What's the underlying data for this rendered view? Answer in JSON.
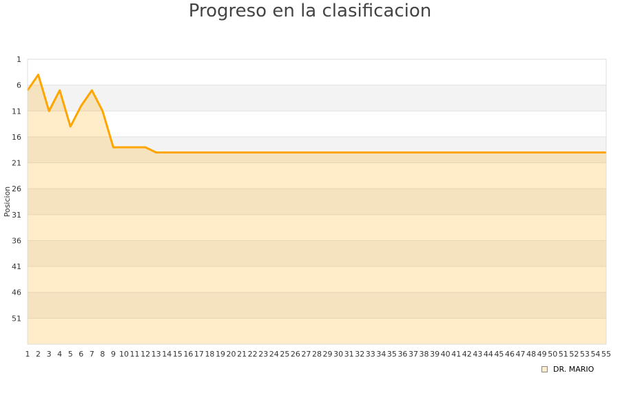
{
  "chart_data": {
    "type": "area",
    "title": "Progreso en la clasificacion",
    "xlabel": "",
    "ylabel": "Posicion",
    "x": [
      1,
      2,
      3,
      4,
      5,
      6,
      7,
      8,
      9,
      10,
      11,
      12,
      13,
      14,
      15,
      16,
      17,
      18,
      19,
      20,
      21,
      22,
      23,
      24,
      25,
      26,
      27,
      28,
      29,
      30,
      31,
      32,
      33,
      34,
      35,
      36,
      37,
      38,
      39,
      40,
      41,
      42,
      43,
      44,
      45,
      46,
      47,
      48,
      49,
      50,
      51,
      52,
      53,
      54,
      55
    ],
    "series": [
      {
        "name": "DR. MARIO",
        "color": "#ffa500",
        "values": [
          7,
          4,
          11,
          7,
          14,
          10,
          7,
          11,
          18,
          18,
          18,
          18,
          19,
          19,
          19,
          19,
          19,
          19,
          19,
          19,
          19,
          19,
          19,
          19,
          19,
          19,
          19,
          19,
          19,
          19,
          19,
          19,
          19,
          19,
          19,
          19,
          19,
          19,
          19,
          19,
          19,
          19,
          19,
          19,
          19,
          19,
          19,
          19,
          19,
          19,
          19,
          19,
          19,
          19,
          19
        ]
      }
    ],
    "yticks": [
      1,
      6,
      11,
      16,
      21,
      26,
      31,
      36,
      41,
      46,
      51
    ],
    "ylim": [
      1,
      56
    ],
    "y_reversed": true,
    "xlim": [
      1,
      55
    ],
    "grid": true,
    "legend": "bottom-right"
  }
}
